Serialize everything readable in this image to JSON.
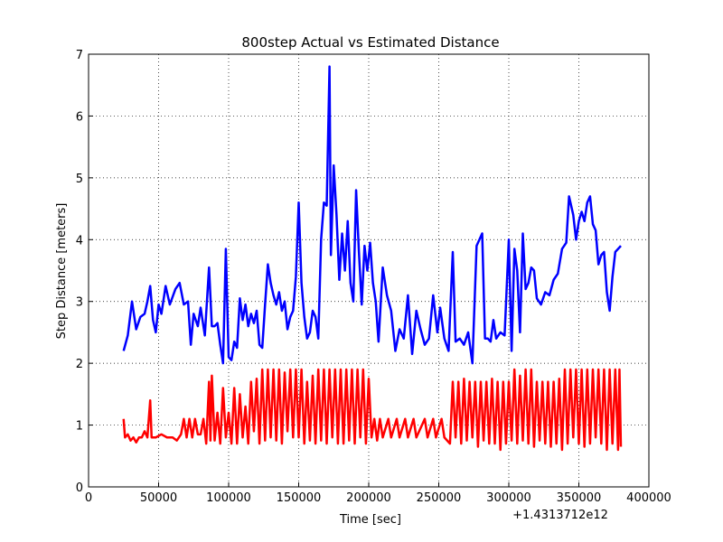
{
  "chart_data": {
    "type": "line",
    "title": "800step Actual vs Estimated Distance",
    "x_label": "Time [sec]",
    "y_label": "Step Distance [meters]",
    "x_offset_label": "+1.4313712e12",
    "xlim": [
      0,
      400000
    ],
    "xticks": [
      0,
      50000,
      100000,
      150000,
      200000,
      250000,
      300000,
      350000,
      400000
    ],
    "ylim": [
      0,
      7
    ],
    "yticks": [
      0,
      1,
      2,
      3,
      4,
      5,
      6,
      7
    ],
    "grid": true,
    "series": [
      {
        "color": "#0000ff",
        "x": [
          25000,
          28000,
          31000,
          34000,
          37000,
          40000,
          42000,
          44000,
          46000,
          48000,
          50000,
          52000,
          55000,
          58000,
          62000,
          65000,
          68000,
          71000,
          73000,
          75000,
          78000,
          80000,
          83000,
          86000,
          88000,
          90000,
          92000,
          94000,
          96000,
          98000,
          100000,
          102000,
          104000,
          106000,
          108000,
          110000,
          112000,
          114000,
          116000,
          118000,
          120000,
          122000,
          124000,
          126000,
          128000,
          130000,
          132000,
          134000,
          136000,
          138000,
          140000,
          142000,
          144000,
          146000,
          148000,
          150000,
          152000,
          154000,
          156000,
          158000,
          160000,
          162000,
          164000,
          166000,
          168000,
          170000,
          172000,
          173000,
          175000,
          177000,
          179000,
          181000,
          183000,
          185000,
          187000,
          189000,
          191000,
          193000,
          195000,
          197000,
          199000,
          201000,
          203000,
          205000,
          207000,
          210000,
          213000,
          216000,
          219000,
          222000,
          225000,
          228000,
          231000,
          234000,
          237000,
          240000,
          243000,
          246000,
          249000,
          251000,
          254000,
          257000,
          260000,
          262000,
          265000,
          268000,
          271000,
          274000,
          277000,
          279000,
          281000,
          283000,
          285000,
          287000,
          289000,
          291000,
          294000,
          297000,
          300000,
          302000,
          304000,
          306000,
          308000,
          310000,
          312000,
          314000,
          316000,
          318000,
          320000,
          323000,
          326000,
          329000,
          332000,
          335000,
          338000,
          341000,
          343000,
          346000,
          348000,
          350000,
          352000,
          354000,
          356000,
          358000,
          360000,
          362000,
          364000,
          366000,
          368000,
          370000,
          372000,
          374000,
          376000,
          378000,
          380000
        ],
        "values": [
          2.2,
          2.45,
          3.0,
          2.55,
          2.75,
          2.8,
          3.0,
          3.25,
          2.7,
          2.5,
          2.95,
          2.8,
          3.25,
          2.95,
          3.2,
          3.3,
          2.95,
          3.0,
          2.3,
          2.8,
          2.6,
          2.9,
          2.45,
          3.55,
          2.6,
          2.6,
          2.65,
          2.3,
          2.0,
          3.85,
          2.1,
          2.05,
          2.35,
          2.25,
          3.05,
          2.7,
          2.95,
          2.6,
          2.8,
          2.65,
          2.85,
          2.3,
          2.25,
          2.95,
          3.6,
          3.3,
          3.1,
          2.95,
          3.15,
          2.85,
          3.0,
          2.55,
          2.75,
          2.85,
          3.4,
          4.6,
          3.3,
          2.75,
          2.4,
          2.5,
          2.85,
          2.75,
          2.4,
          4.0,
          4.6,
          4.55,
          6.8,
          3.75,
          5.2,
          4.4,
          3.35,
          4.1,
          3.5,
          4.3,
          3.3,
          3.0,
          4.8,
          3.8,
          2.95,
          3.9,
          3.5,
          3.95,
          3.3,
          3.0,
          2.35,
          3.55,
          3.1,
          2.85,
          2.2,
          2.55,
          2.4,
          3.1,
          2.15,
          2.85,
          2.55,
          2.3,
          2.4,
          3.1,
          2.5,
          2.9,
          2.4,
          2.2,
          3.8,
          2.35,
          2.4,
          2.3,
          2.5,
          2.0,
          3.9,
          4.0,
          4.1,
          2.4,
          2.4,
          2.35,
          2.7,
          2.4,
          2.5,
          2.45,
          4.0,
          2.2,
          3.85,
          3.5,
          2.5,
          4.1,
          3.2,
          3.3,
          3.55,
          3.5,
          3.05,
          2.95,
          3.15,
          3.1,
          3.35,
          3.45,
          3.85,
          3.95,
          4.7,
          4.4,
          4.0,
          4.3,
          4.45,
          4.3,
          4.6,
          4.7,
          4.25,
          4.15,
          3.6,
          3.75,
          3.8,
          3.15,
          2.85,
          3.4,
          3.8,
          3.85,
          3.9
        ]
      },
      {
        "color": "#ff0000",
        "x": [
          25000,
          26000,
          28000,
          30000,
          32000,
          34000,
          36000,
          38000,
          40000,
          42000,
          44000,
          45000,
          48000,
          52000,
          56000,
          60000,
          63000,
          66000,
          68000,
          70000,
          72000,
          74000,
          76000,
          78000,
          80000,
          82000,
          84000,
          86000,
          87000,
          88000,
          90000,
          92000,
          94000,
          96000,
          98000,
          100000,
          102000,
          104000,
          106000,
          108000,
          110000,
          112000,
          114000,
          116000,
          118000,
          120000,
          122000,
          124000,
          126000,
          128000,
          130000,
          132000,
          134000,
          136000,
          138000,
          140000,
          142000,
          144000,
          146000,
          148000,
          150000,
          152000,
          154000,
          156000,
          158000,
          160000,
          162000,
          164000,
          166000,
          168000,
          170000,
          172000,
          174000,
          176000,
          178000,
          180000,
          182000,
          184000,
          186000,
          188000,
          190000,
          192000,
          194000,
          196000,
          198000,
          200000,
          202000,
          204000,
          206000,
          208000,
          210000,
          214000,
          216000,
          220000,
          222000,
          226000,
          228000,
          232000,
          234000,
          240000,
          242000,
          246000,
          248000,
          252000,
          254000,
          258000,
          260000,
          262000,
          264000,
          266000,
          268000,
          270000,
          272000,
          274000,
          276000,
          278000,
          280000,
          282000,
          284000,
          286000,
          288000,
          290000,
          292000,
          294000,
          296000,
          298000,
          300000,
          302000,
          304000,
          306000,
          308000,
          310000,
          312000,
          314000,
          316000,
          318000,
          320000,
          322000,
          324000,
          326000,
          328000,
          330000,
          332000,
          334000,
          336000,
          338000,
          340000,
          342000,
          344000,
          346000,
          348000,
          350000,
          352000,
          354000,
          356000,
          358000,
          360000,
          362000,
          364000,
          366000,
          368000,
          370000,
          372000,
          374000,
          376000,
          378000,
          379000,
          380000
        ],
        "values": [
          1.1,
          0.8,
          0.85,
          0.75,
          0.8,
          0.72,
          0.8,
          0.8,
          0.9,
          0.8,
          1.4,
          0.8,
          0.8,
          0.85,
          0.8,
          0.8,
          0.75,
          0.85,
          1.1,
          0.8,
          1.1,
          0.8,
          1.1,
          0.85,
          0.85,
          1.1,
          0.7,
          1.7,
          0.75,
          1.8,
          0.75,
          1.2,
          0.7,
          1.6,
          0.8,
          1.2,
          0.7,
          1.6,
          0.7,
          1.5,
          0.8,
          1.3,
          0.7,
          1.7,
          0.9,
          1.75,
          0.7,
          1.9,
          0.75,
          1.9,
          0.8,
          1.9,
          0.75,
          1.9,
          0.7,
          1.85,
          0.9,
          1.9,
          0.8,
          1.9,
          0.8,
          1.9,
          0.7,
          1.7,
          0.75,
          1.8,
          0.7,
          1.9,
          0.75,
          1.9,
          0.7,
          1.9,
          0.8,
          1.9,
          0.7,
          1.9,
          0.7,
          1.9,
          0.75,
          1.9,
          0.7,
          1.9,
          0.8,
          1.9,
          0.7,
          1.75,
          0.8,
          1.1,
          0.75,
          1.1,
          0.8,
          1.1,
          0.8,
          1.1,
          0.8,
          1.1,
          0.8,
          1.1,
          0.8,
          1.1,
          0.8,
          1.1,
          0.8,
          1.1,
          0.8,
          0.7,
          1.7,
          0.8,
          1.7,
          0.7,
          1.75,
          0.75,
          1.7,
          0.8,
          1.7,
          0.65,
          1.7,
          0.75,
          1.7,
          0.7,
          1.75,
          0.7,
          1.7,
          0.6,
          1.7,
          0.7,
          1.7,
          0.75,
          1.9,
          0.7,
          1.8,
          0.75,
          1.9,
          0.7,
          1.9,
          0.65,
          1.7,
          0.75,
          1.7,
          0.7,
          1.7,
          0.65,
          1.7,
          0.7,
          1.75,
          0.6,
          1.9,
          0.7,
          1.9,
          0.8,
          1.9,
          0.7,
          1.9,
          0.65,
          1.9,
          0.7,
          1.9,
          0.8,
          1.9,
          0.7,
          1.9,
          0.6,
          1.9,
          0.7,
          1.9,
          0.6,
          1.9,
          0.65
        ]
      }
    ]
  }
}
